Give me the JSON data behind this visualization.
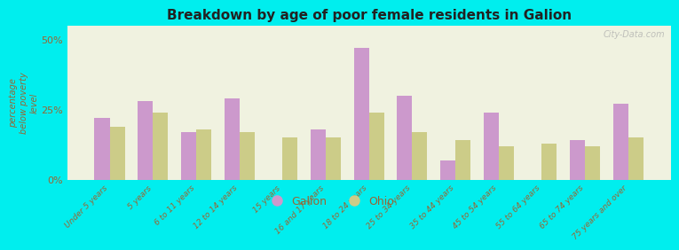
{
  "title": "Breakdown by age of poor female residents in Galion",
  "ylabel": "percentage\nbelow poverty\nlevel",
  "categories": [
    "Under 5 years",
    "5 years",
    "6 to 11 years",
    "12 to 14 years",
    "15 years",
    "16 and 17 years",
    "18 to 24 years",
    "25 to 34 years",
    "35 to 44 years",
    "45 to 54 years",
    "55 to 64 years",
    "65 to 74 years",
    "75 years and over"
  ],
  "galion_values": [
    22,
    28,
    17,
    29,
    0,
    18,
    47,
    30,
    7,
    24,
    0,
    14,
    27
  ],
  "ohio_values": [
    19,
    24,
    18,
    17,
    15,
    15,
    24,
    17,
    14,
    12,
    13,
    12,
    15
  ],
  "galion_color": "#cc99cc",
  "ohio_color": "#cccc88",
  "background_color": "#00eeee",
  "plot_bg": "#f0f2e0",
  "title_color": "#222222",
  "axis_label_color": "#996633",
  "tick_label_color": "#996633",
  "ylim": [
    0,
    55
  ],
  "yticks": [
    0,
    25,
    50
  ],
  "ytick_labels": [
    "0%",
    "25%",
    "50%"
  ],
  "legend_galion": "Galion",
  "legend_ohio": "Ohio",
  "bar_width": 0.35,
  "watermark": "City-Data.com"
}
